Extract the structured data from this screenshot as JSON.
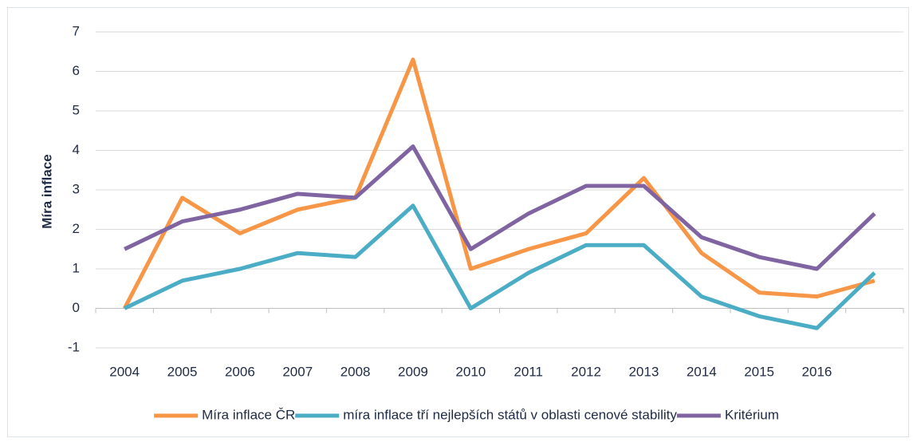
{
  "chart_data": {
    "type": "line",
    "y_label": "Míra inflace",
    "categories": [
      "2004",
      "2005",
      "2006",
      "2007",
      "2008",
      "2009",
      "2010",
      "2011",
      "2012",
      "2013",
      "2014",
      "2015",
      "2016",
      null
    ],
    "series": [
      {
        "name": "Míra inflace ČR",
        "color": "#f79646",
        "values": [
          0,
          2.8,
          1.9,
          2.5,
          2.8,
          6.3,
          1.0,
          1.5,
          1.9,
          3.3,
          1.4,
          0.4,
          0.3,
          0.7
        ]
      },
      {
        "name": "míra inflace tří nejlepších států v oblasti cenové stability",
        "color": "#4bacc6",
        "values": [
          0,
          0.7,
          1.0,
          1.4,
          1.3,
          2.6,
          0,
          0.9,
          1.6,
          1.6,
          0.3,
          -0.2,
          -0.5,
          0.9
        ]
      },
      {
        "name": "Kritérium",
        "color": "#8064a2",
        "values": [
          1.5,
          2.2,
          2.5,
          2.9,
          2.8,
          4.1,
          1.5,
          2.4,
          3.1,
          3.1,
          1.8,
          1.3,
          1.0,
          2.4
        ]
      }
    ],
    "ylim": [
      -1,
      7
    ],
    "yticks": [
      -1,
      0,
      1,
      2,
      3,
      4,
      5,
      6,
      7
    ],
    "grid": true,
    "legend": "bottom"
  }
}
